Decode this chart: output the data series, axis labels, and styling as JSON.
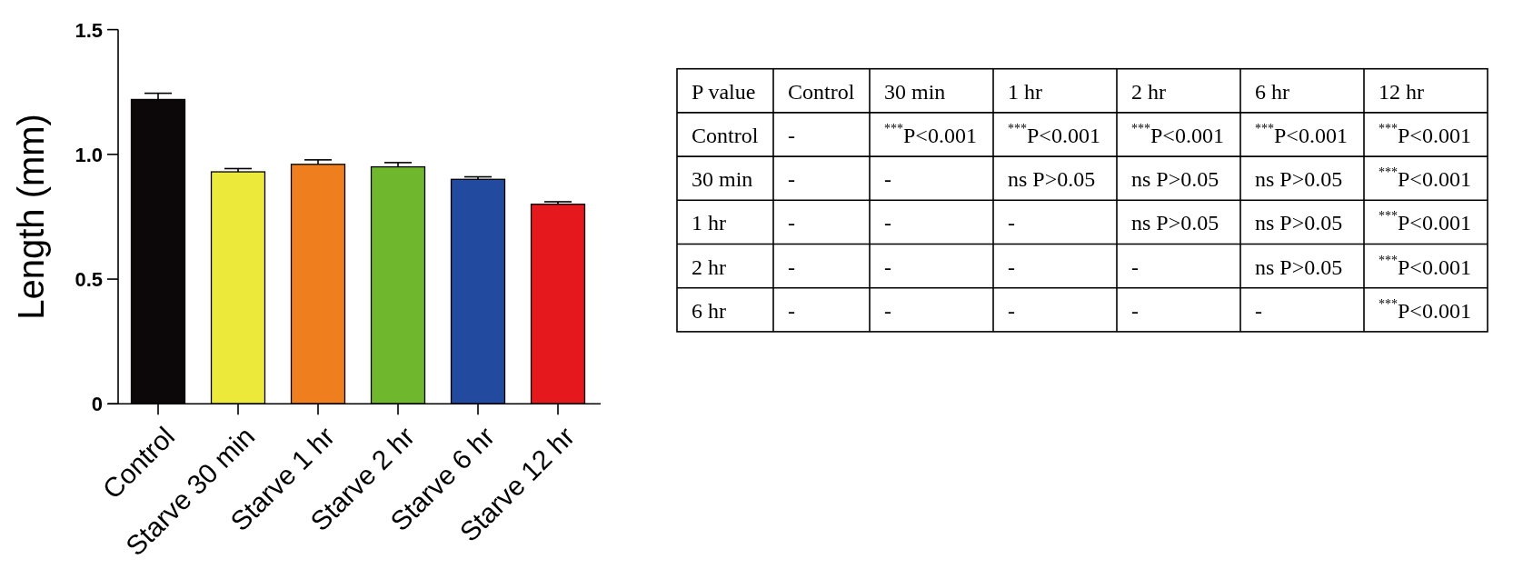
{
  "chart_data": [
    {
      "type": "bar",
      "ylabel": "Length (mm)",
      "categories": [
        "Control",
        "Starve 30 min",
        "Starve 1 hr",
        "Starve 2 hr",
        "Starve 6 hr",
        "Starve 12 hr"
      ],
      "values": [
        1.22,
        0.93,
        0.96,
        0.95,
        0.9,
        0.8
      ],
      "colors": [
        "#0c0809",
        "#ede93a",
        "#ef7f1e",
        "#6fb82e",
        "#224a9f",
        "#e5191d"
      ],
      "errors": [
        0.025,
        0.013,
        0.018,
        0.017,
        0.01,
        0.01
      ],
      "ylim": [
        0,
        1.5
      ],
      "yticks": [
        0,
        0.5,
        {
          "value": 1,
          "label": "1.0"
        },
        1.5
      ]
    },
    {
      "type": "other",
      "title": "P value",
      "categories": [
        "Control",
        "30 min",
        "1 hr",
        "2 hr",
        "6 hr",
        "12 hr"
      ],
      "y_categories": [
        "Control",
        "30 min",
        "1 hr",
        "2 hr",
        "6 hr"
      ],
      "cell_labels": [
        [
          "-",
          "$^{***}$P<0.001",
          "$^{***}$P<0.001",
          "$^{***}$P<0.001",
          "$^{***}$P<0.001",
          "$^{***}$P<0.001"
        ],
        [
          "-",
          "-",
          "ns P>0.05",
          "ns P>0.05",
          "ns P>0.05",
          "$^{***}$P<0.001"
        ],
        [
          "-",
          "-",
          "-",
          "ns P>0.05",
          "ns P>0.05",
          "$^{***}$P<0.001"
        ],
        [
          "-",
          "-",
          "-",
          "-",
          "ns P>0.05",
          "$^{***}$P<0.001"
        ],
        [
          "-",
          "-",
          "-",
          "-",
          "-",
          "$^{***}$P<0.001"
        ]
      ]
    }
  ]
}
